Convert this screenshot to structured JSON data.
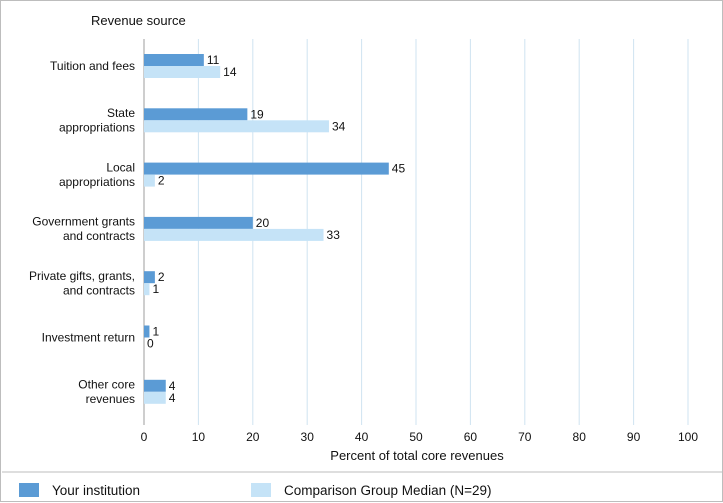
{
  "chart_data": {
    "type": "bar",
    "orientation": "horizontal",
    "y_axis_title": "Revenue source",
    "xlabel": "Percent of total core revenues",
    "categories": [
      [
        "Tuition and fees"
      ],
      [
        "State",
        "appropriations"
      ],
      [
        "Local",
        "appropriations"
      ],
      [
        "Government grants",
        "and contracts"
      ],
      [
        "Private gifts, grants,",
        "and contracts"
      ],
      [
        "Investment return"
      ],
      [
        "Other core",
        "revenues"
      ]
    ],
    "series": [
      {
        "name": "Your institution",
        "color": "#5b9bd5",
        "values": [
          11,
          19,
          45,
          20,
          2,
          1,
          4
        ]
      },
      {
        "name": "Comparison Group Median (N=29)",
        "color": "#c5e3f7",
        "values": [
          14,
          34,
          2,
          33,
          1,
          0,
          4
        ]
      }
    ],
    "xlim": [
      0,
      100
    ],
    "xticks": [
      0,
      10,
      20,
      30,
      40,
      50,
      60,
      70,
      80,
      90,
      100
    ],
    "grid": true,
    "legend_position": "bottom"
  }
}
